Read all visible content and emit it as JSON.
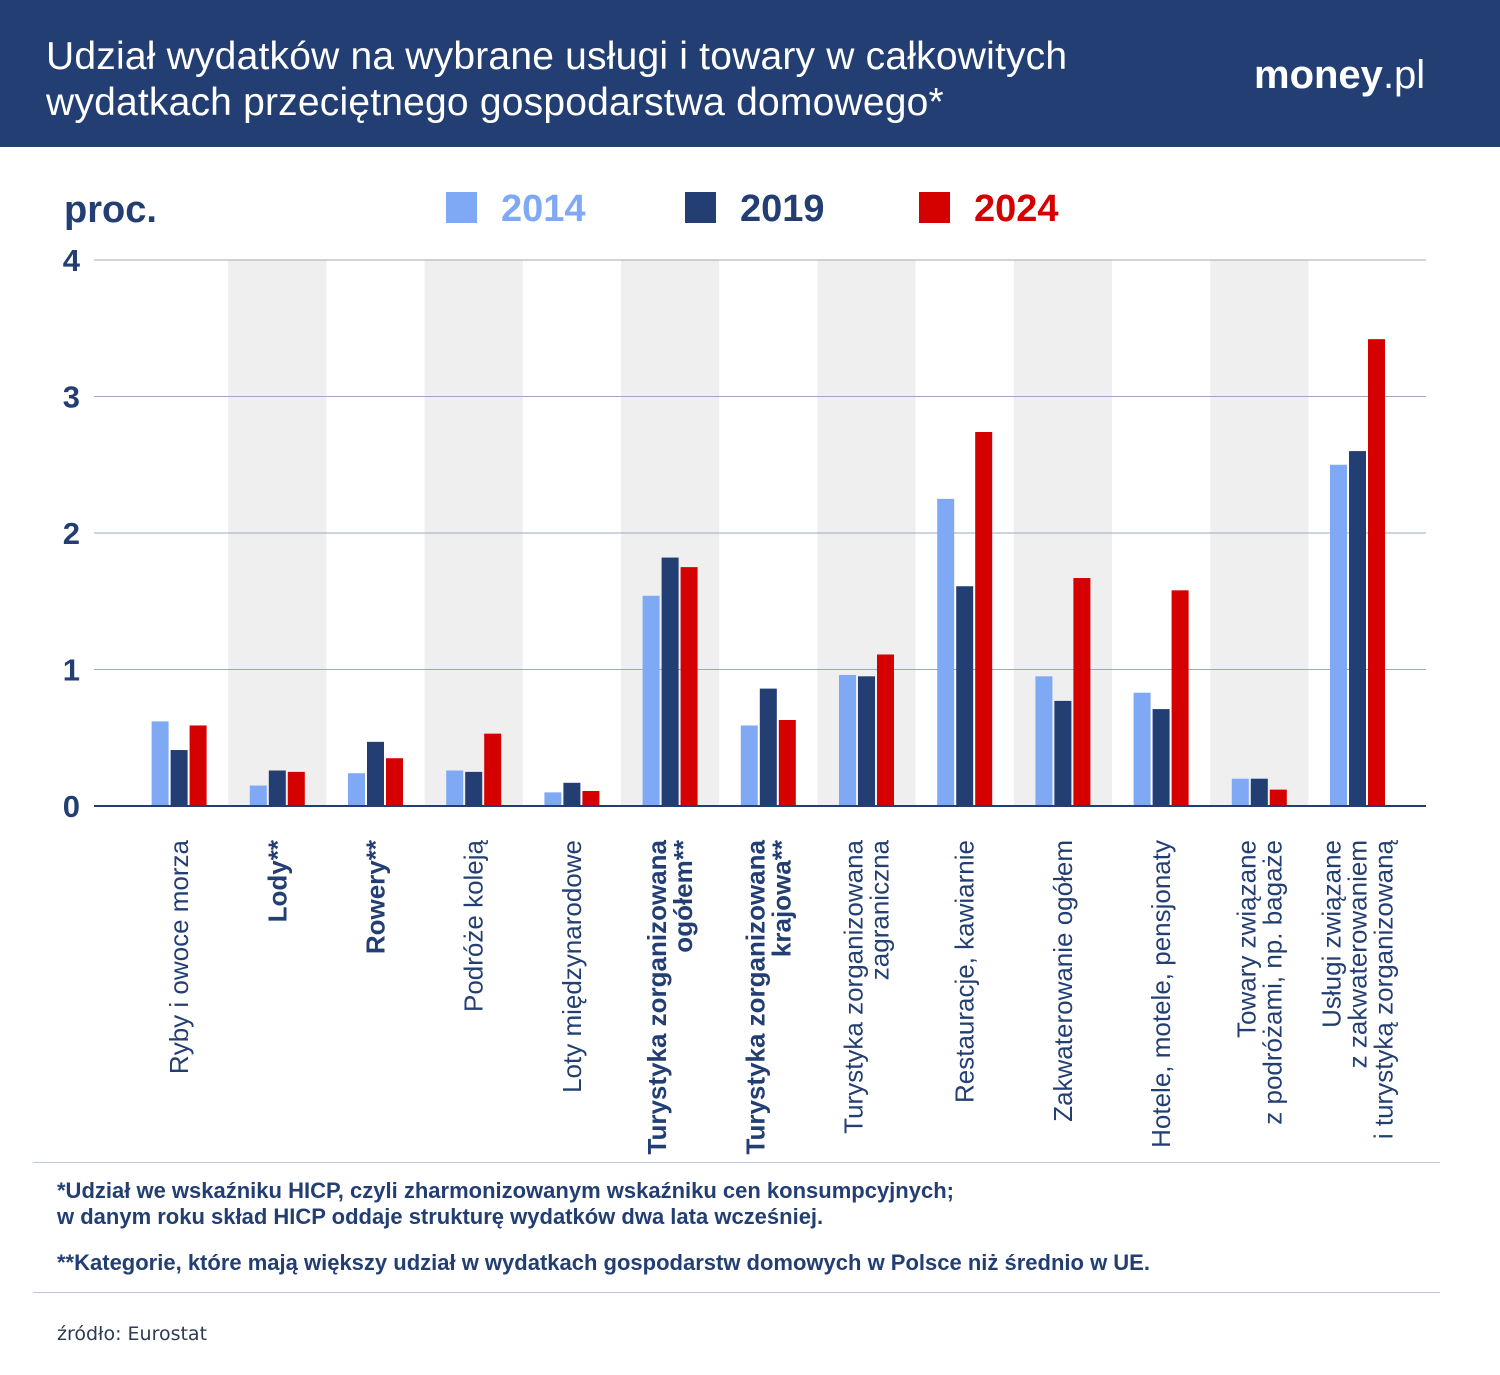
{
  "header": {
    "title_line1": "Udział wydatków na wybrane usługi i towary w całkowitych",
    "title_line2": "wydatkach przeciętnego gospodarstwa domowego*",
    "logo_bold": "money",
    "logo_rest": ".pl"
  },
  "colors": {
    "header_bg": "#223e72",
    "s2014": "#7fa9f5",
    "s2019": "#223e72",
    "s2024": "#d50000",
    "band": "#efefef",
    "grid": "#99a8c4",
    "text": "#223e72"
  },
  "chart_data": {
    "type": "bar",
    "ylabel": "proc.",
    "ylim": [
      0,
      4
    ],
    "yticks": [
      "0",
      "1",
      "2",
      "3",
      "4"
    ],
    "legend_position": "top-center",
    "grid": true,
    "series": [
      {
        "name": "2014",
        "values": [
          0.62,
          0.15,
          0.24,
          0.26,
          0.1,
          1.54,
          0.59,
          0.96,
          2.25,
          0.95,
          0.83,
          0.2,
          2.5
        ]
      },
      {
        "name": "2019",
        "values": [
          0.41,
          0.26,
          0.47,
          0.25,
          0.17,
          1.82,
          0.86,
          0.95,
          1.61,
          0.77,
          0.71,
          0.2,
          2.6
        ]
      },
      {
        "name": "2024",
        "values": [
          0.59,
          0.25,
          0.35,
          0.53,
          0.11,
          1.75,
          0.63,
          1.11,
          2.74,
          1.67,
          1.58,
          0.12,
          3.42
        ]
      }
    ],
    "categories": [
      {
        "lines": [
          "Ryby i owoce morza"
        ],
        "bold": false
      },
      {
        "lines": [
          "Lody**"
        ],
        "bold": true
      },
      {
        "lines": [
          "Rowery**"
        ],
        "bold": true
      },
      {
        "lines": [
          "Podróże koleją"
        ],
        "bold": false
      },
      {
        "lines": [
          "Loty międzynarodowe"
        ],
        "bold": false
      },
      {
        "lines": [
          "Turystyka zorganizowana",
          "ogółem**"
        ],
        "bold": true
      },
      {
        "lines": [
          "Turystyka zorganizowana",
          "krajowa**"
        ],
        "bold": true
      },
      {
        "lines": [
          "Turystyka zorganizowana",
          "zagraniczna"
        ],
        "bold": false
      },
      {
        "lines": [
          "Restauracje, kawiarnie"
        ],
        "bold": false
      },
      {
        "lines": [
          "Zakwaterowanie ogółem"
        ],
        "bold": false
      },
      {
        "lines": [
          "Hotele, motele, pensjonaty"
        ],
        "bold": false
      },
      {
        "lines": [
          "Towary związane",
          "z podróżami, np. bagaże"
        ],
        "bold": false
      },
      {
        "lines": [
          "Usługi związane",
          "z zakwaterowaniem",
          "i turystyką zorganizowaną"
        ],
        "bold": false
      }
    ]
  },
  "notes": {
    "note1_line1": "*Udział we wskaźniku HICP, czyli zharmonizowanym wskaźniku cen konsumpcyjnych;",
    "note1_line2": "w danym roku skład HICP oddaje strukturę wydatków dwa lata wcześniej.",
    "note2": "**Kategorie, które mają większy udział w wydatkach gospodarstw domowych w Polsce niż średnio w UE."
  },
  "source": "źródło: Eurostat"
}
